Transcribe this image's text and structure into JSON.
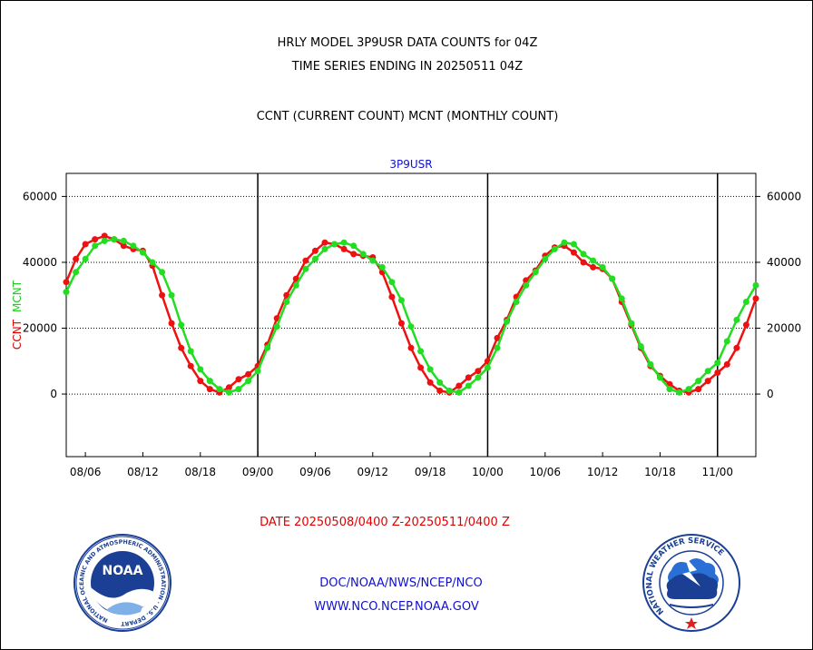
{
  "header": {
    "line1": "HRLY MODEL 3P9USR DATA COUNTS for 04Z",
    "line2": "TIME SERIES ENDING IN 20250511 04Z",
    "subtitle": "CCNT (CURRENT COUNT) MCNT (MONTHLY COUNT)"
  },
  "chart_data": {
    "type": "line",
    "title": "3P9USR",
    "xlabel": "DATE 20250508/0400 Z-20250511/0400 Z",
    "ylabel_parts": [
      "CCNT",
      "MCNT"
    ],
    "ylim": [
      -19000,
      67000
    ],
    "yticks": [
      0,
      20000,
      40000,
      60000
    ],
    "ytick_labels": [
      "0",
      "20000",
      "40000",
      "60000"
    ],
    "xlim": [
      4,
      76
    ],
    "xticks": [
      6,
      12,
      18,
      24,
      30,
      36,
      42,
      48,
      54,
      60,
      66,
      72
    ],
    "xtick_labels": [
      "08/06",
      "08/12",
      "08/18",
      "09/00",
      "09/06",
      "09/12",
      "09/18",
      "10/00",
      "10/06",
      "10/12",
      "10/18",
      "11/00"
    ],
    "day_boundaries": [
      24,
      48,
      72
    ],
    "grid": "horizontal dotted at y ticks",
    "colors": {
      "ccnt": "#ee1111",
      "mcnt": "#22dd22",
      "title": "#1010cc",
      "xlabel": "#e00000"
    },
    "series": [
      {
        "name": "CCNT",
        "x": [
          4,
          5,
          6,
          7,
          8,
          9,
          10,
          11,
          12,
          13,
          14,
          15,
          16,
          17,
          18,
          19,
          20,
          21,
          22,
          23,
          24,
          25,
          26,
          27,
          28,
          29,
          30,
          31,
          32,
          33,
          34,
          35,
          36,
          37,
          38,
          39,
          40,
          41,
          42,
          43,
          44,
          45,
          46,
          47,
          48,
          49,
          50,
          51,
          52,
          53,
          54,
          55,
          56,
          57,
          58,
          59,
          60,
          61,
          62,
          63,
          64,
          65,
          66,
          67,
          68,
          69,
          70,
          71,
          72,
          73,
          74,
          75,
          76
        ],
        "values": [
          34000,
          41000,
          45500,
          47000,
          48000,
          47000,
          45000,
          44000,
          43500,
          39000,
          30000,
          21500,
          14000,
          8500,
          4000,
          1500,
          500,
          2000,
          4500,
          6000,
          8500,
          15000,
          23000,
          30000,
          35000,
          40500,
          43500,
          46000,
          45500,
          44000,
          42500,
          42000,
          41500,
          37000,
          29500,
          21500,
          14000,
          8000,
          3500,
          1000,
          500,
          2500,
          5000,
          7000,
          10000,
          17000,
          22500,
          29500,
          34500,
          37500,
          42000,
          44500,
          45000,
          43000,
          40000,
          38500,
          38000,
          35000,
          28000,
          21000,
          14000,
          8500,
          5500,
          3000,
          1000,
          500,
          1500,
          4000,
          6500,
          9000,
          14000,
          21000,
          29000
        ],
        "color": "#ee1111"
      },
      {
        "name": "MCNT",
        "x": [
          4,
          5,
          6,
          7,
          8,
          9,
          10,
          11,
          12,
          13,
          14,
          15,
          16,
          17,
          18,
          19,
          20,
          21,
          22,
          23,
          24,
          25,
          26,
          27,
          28,
          29,
          30,
          31,
          32,
          33,
          34,
          35,
          36,
          37,
          38,
          39,
          40,
          41,
          42,
          43,
          44,
          45,
          46,
          47,
          48,
          49,
          50,
          51,
          52,
          53,
          54,
          55,
          56,
          57,
          58,
          59,
          60,
          61,
          62,
          63,
          64,
          65,
          66,
          67,
          68,
          69,
          70,
          71,
          72,
          73,
          74,
          75,
          76
        ],
        "values": [
          31000,
          37000,
          41000,
          45000,
          46500,
          47000,
          46500,
          45000,
          43000,
          40000,
          37000,
          30000,
          21000,
          13000,
          7500,
          4000,
          1500,
          500,
          1500,
          4000,
          7000,
          14000,
          20500,
          28000,
          33000,
          38000,
          41000,
          44000,
          45500,
          46000,
          45000,
          42500,
          40500,
          38500,
          34000,
          28500,
          20500,
          13000,
          7500,
          3500,
          1000,
          500,
          2500,
          5000,
          8000,
          14000,
          22000,
          28000,
          33000,
          37000,
          41000,
          44000,
          46000,
          45500,
          42500,
          40500,
          38500,
          35000,
          29000,
          21500,
          14500,
          9000,
          5000,
          1500,
          500,
          1500,
          4000,
          7000,
          9500,
          16000,
          22500,
          28000,
          33000
        ],
        "color": "#22dd22"
      }
    ]
  },
  "footer": {
    "org_line": "DOC/NOAA/NWS/NCEP/NCO",
    "url_line": "WWW.NCO.NCEP.NOAA.GOV",
    "noaa_logo": {
      "center_text": "NOAA",
      "ring_text": "NATIONAL OCEANIC AND ATMOSPHERIC ADMINISTRATION · U.S. DEPARTMENT OF COMMERCE"
    },
    "nws_logo": {
      "ring_text": "NATIONAL WEATHER SERVICE"
    }
  }
}
